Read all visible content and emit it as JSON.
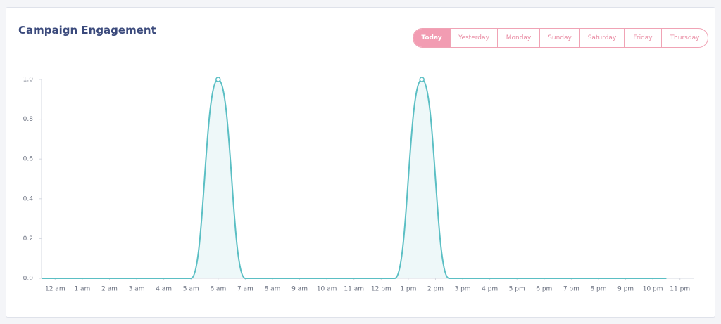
{
  "header": {
    "title": "Campaign Engagement"
  },
  "tabs": [
    "Today",
    "Yesterday",
    "Monday",
    "Sunday",
    "Saturday",
    "Friday",
    "Thursday"
  ],
  "chart_data": {
    "type": "line",
    "series": [
      {
        "name": "Engagement",
        "color": "#5bbfc4",
        "x": [
          -0.5,
          5,
          6,
          7,
          12.5,
          13.5,
          14.5,
          22.5
        ],
        "values": [
          0,
          0,
          1,
          0,
          0,
          1,
          0,
          0
        ]
      }
    ],
    "xlim": [
      -0.5,
      23.5
    ],
    "xticks": [
      {
        "value": 0,
        "label": "12 am"
      },
      {
        "value": 1,
        "label": "1 am"
      },
      {
        "value": 2,
        "label": "2 am"
      },
      {
        "value": 3,
        "label": "3 am"
      },
      {
        "value": 4,
        "label": "4 am"
      },
      {
        "value": 5,
        "label": "5 am"
      },
      {
        "value": 6,
        "label": "6 am"
      },
      {
        "value": 7,
        "label": "7 am"
      },
      {
        "value": 8,
        "label": "8 am"
      },
      {
        "value": 9,
        "label": "9 am"
      },
      {
        "value": 10,
        "label": "10 am"
      },
      {
        "value": 11,
        "label": "11 am"
      },
      {
        "value": 12,
        "label": "12 pm"
      },
      {
        "value": 13,
        "label": "1 pm"
      },
      {
        "value": 14,
        "label": "2 pm"
      },
      {
        "value": 15,
        "label": "3 pm"
      },
      {
        "value": 16,
        "label": "4 pm"
      },
      {
        "value": 17,
        "label": "5 pm"
      },
      {
        "value": 18,
        "label": "6 pm"
      },
      {
        "value": 19,
        "label": "7 pm"
      },
      {
        "value": 20,
        "label": "8 pm"
      },
      {
        "value": 21,
        "label": "9 pm"
      },
      {
        "value": 22,
        "label": "10 pm"
      },
      {
        "value": 23,
        "label": "11 pm"
      }
    ],
    "ylim": [
      0,
      1
    ],
    "yticks": [
      {
        "value": 0,
        "label": "0.0"
      },
      0.2,
      0.4,
      0.6,
      0.8,
      {
        "value": 1,
        "label": "1.0"
      }
    ],
    "grid": false
  }
}
